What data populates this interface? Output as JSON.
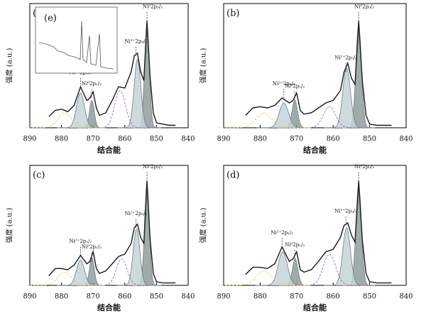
{
  "chart_data": [
    {
      "type": "line",
      "panel_label": "(a)",
      "x_label": "结合能",
      "y_label": "强度 (a.u.)",
      "xlim": [
        890,
        840
      ],
      "xticks": [
        890,
        880,
        870,
        860,
        850,
        840
      ],
      "ylim": [
        0,
        100
      ],
      "inset": {
        "label": "(e)"
      },
      "x": [
        884,
        882,
        880,
        878,
        876,
        874,
        872,
        871,
        870,
        869,
        868,
        866,
        864,
        862,
        860,
        858,
        857,
        856,
        855,
        854,
        853,
        852,
        851,
        850,
        848,
        846,
        844
      ],
      "series": [
        {
          "color": "#1a1a1a",
          "values": [
            9,
            14,
            15,
            13,
            18,
            33,
            22,
            24,
            29,
            16,
            10,
            12,
            22,
            33,
            32,
            45,
            58,
            60,
            45,
            38,
            86,
            40,
            12,
            4,
            3,
            2,
            2
          ]
        }
      ],
      "peaks": [
        {
          "center": 853,
          "height": 82,
          "width": 1.8,
          "color": "#8f9e9a"
        },
        {
          "center": 856,
          "height": 55,
          "width": 2.5,
          "color": "#c5d3d6"
        },
        {
          "center": 861.5,
          "height": 30,
          "width": 4,
          "color": "#8a5bb5"
        },
        {
          "center": 870.4,
          "height": 22,
          "width": 1.8,
          "color": "#8f9e9a"
        },
        {
          "center": 874,
          "height": 28,
          "width": 3,
          "color": "#c5d3d6"
        },
        {
          "center": 879,
          "height": 12,
          "width": 5,
          "color": "#d8c85a"
        }
      ],
      "markers": [
        {
          "value": 853,
          "label": "Ni⁰2p₃/₂"
        },
        {
          "value": 856.5,
          "label": "Ni²⁺2p₃/₂"
        },
        {
          "value": 870.5,
          "label": "Ni⁰2p₁/₂"
        },
        {
          "value": 874,
          "label": "Ni²⁺2p₁/₂"
        }
      ]
    },
    {
      "type": "line",
      "panel_label": "(b)",
      "x_label": "结合能",
      "y_label": "强度 (a.u.)",
      "xlim": [
        890,
        840
      ],
      "xticks": [
        890,
        880,
        870,
        860,
        850,
        840
      ],
      "ylim": [
        0,
        100
      ],
      "x": [
        884,
        882,
        880,
        878,
        876,
        874,
        872,
        871,
        870,
        869,
        868,
        866,
        864,
        862,
        860,
        858,
        857,
        856,
        855,
        854,
        853,
        852,
        851,
        850,
        848,
        846,
        844
      ],
      "series": [
        {
          "color": "#1a1a1a",
          "values": [
            10,
            16,
            17,
            16,
            18,
            24,
            20,
            22,
            28,
            14,
            11,
            12,
            16,
            20,
            22,
            30,
            45,
            52,
            40,
            35,
            86,
            38,
            10,
            3,
            2,
            2,
            2
          ]
        }
      ],
      "peaks": [
        {
          "center": 853,
          "height": 82,
          "width": 1.8,
          "color": "#8f9e9a"
        },
        {
          "center": 856.3,
          "height": 48,
          "width": 2.5,
          "color": "#c5d3d6"
        },
        {
          "center": 861,
          "height": 17,
          "width": 4,
          "color": "#8a5bb5"
        },
        {
          "center": 870.5,
          "height": 22,
          "width": 1.8,
          "color": "#8f9e9a"
        },
        {
          "center": 873.5,
          "height": 20,
          "width": 3,
          "color": "#c5d3d6"
        },
        {
          "center": 879,
          "height": 12,
          "width": 5,
          "color": "#d8c85a"
        }
      ],
      "markers": [
        {
          "value": 853,
          "label": "Ni⁰2p₃/₂"
        },
        {
          "value": 856.5,
          "label": "Ni²⁺2p₃/₂"
        },
        {
          "value": 870.5,
          "label": "Ni⁰2p₁/₂"
        },
        {
          "value": 873.5,
          "label": "Ni²⁺2p₁/₂"
        }
      ]
    },
    {
      "type": "line",
      "panel_label": "(c)",
      "x_label": "结合能",
      "y_label": "强度 (a.u.)",
      "xlim": [
        890,
        840
      ],
      "xticks": [
        890,
        880,
        870,
        860,
        850,
        840
      ],
      "ylim": [
        0,
        100
      ],
      "x": [
        884,
        882,
        880,
        878,
        876,
        874,
        872,
        871,
        870,
        869,
        868,
        866,
        864,
        862,
        860,
        858,
        857,
        856,
        855,
        854,
        853,
        852,
        851,
        850,
        848,
        846,
        844
      ],
      "series": [
        {
          "color": "#1a1a1a",
          "values": [
            8,
            14,
            14,
            13,
            17,
            25,
            18,
            20,
            28,
            14,
            10,
            12,
            18,
            24,
            26,
            35,
            48,
            51,
            40,
            35,
            87,
            38,
            10,
            3,
            2,
            2,
            2
          ]
        }
      ],
      "peaks": [
        {
          "center": 853,
          "height": 83,
          "width": 1.8,
          "color": "#8f9e9a"
        },
        {
          "center": 856.3,
          "height": 47,
          "width": 2.5,
          "color": "#c5d3d6"
        },
        {
          "center": 861,
          "height": 22,
          "width": 4,
          "color": "#8a5bb5"
        },
        {
          "center": 870.4,
          "height": 23,
          "width": 1.8,
          "color": "#8f9e9a"
        },
        {
          "center": 874,
          "height": 21,
          "width": 3,
          "color": "#c5d3d6"
        },
        {
          "center": 879,
          "height": 11,
          "width": 5,
          "color": "#d8c85a"
        }
      ],
      "markers": [
        {
          "value": 853,
          "label": "Ni⁰2p₃/₂"
        },
        {
          "value": 856.5,
          "label": "Ni²⁺2p₃/₂"
        },
        {
          "value": 870.5,
          "label": "Ni⁰2p₁/₂"
        },
        {
          "value": 874,
          "label": "Ni²⁺2p₁/₂"
        }
      ]
    },
    {
      "type": "line",
      "panel_label": "(d)",
      "x_label": "结合能",
      "y_label": "强度 (a.u.)",
      "xlim": [
        890,
        840
      ],
      "xticks": [
        890,
        880,
        870,
        860,
        850,
        840
      ],
      "ylim": [
        0,
        100
      ],
      "x": [
        884,
        882,
        880,
        878,
        876,
        874,
        872,
        871,
        870,
        869,
        868,
        866,
        864,
        862,
        860,
        858,
        857,
        856,
        855,
        854,
        853,
        852,
        851,
        850,
        848,
        846,
        844
      ],
      "series": [
        {
          "color": "#1a1a1a",
          "values": [
            9,
            15,
            15,
            14,
            18,
            32,
            20,
            22,
            28,
            13,
            11,
            13,
            20,
            28,
            30,
            40,
            50,
            52,
            42,
            36,
            87,
            38,
            10,
            3,
            2,
            2,
            2
          ]
        }
      ],
      "peaks": [
        {
          "center": 853,
          "height": 83,
          "width": 1.8,
          "color": "#8f9e9a"
        },
        {
          "center": 856.3,
          "height": 48,
          "width": 2.5,
          "color": "#c5d3d6"
        },
        {
          "center": 861,
          "height": 26,
          "width": 4,
          "color": "#8a5bb5"
        },
        {
          "center": 870.4,
          "height": 22,
          "width": 1.8,
          "color": "#8f9e9a"
        },
        {
          "center": 873.8,
          "height": 28,
          "width": 3,
          "color": "#c5d3d6"
        },
        {
          "center": 879,
          "height": 12,
          "width": 5,
          "color": "#d8c85a"
        }
      ],
      "markers": [
        {
          "value": 853,
          "label": "Ni⁰2p₃/₂"
        },
        {
          "value": 856.5,
          "label": "Ni²⁺2p₃/₂"
        },
        {
          "value": 870.5,
          "label": "Ni⁰2p₁/₂"
        },
        {
          "value": 874,
          "label": "Ni²⁺2p₁/₂"
        }
      ]
    }
  ]
}
